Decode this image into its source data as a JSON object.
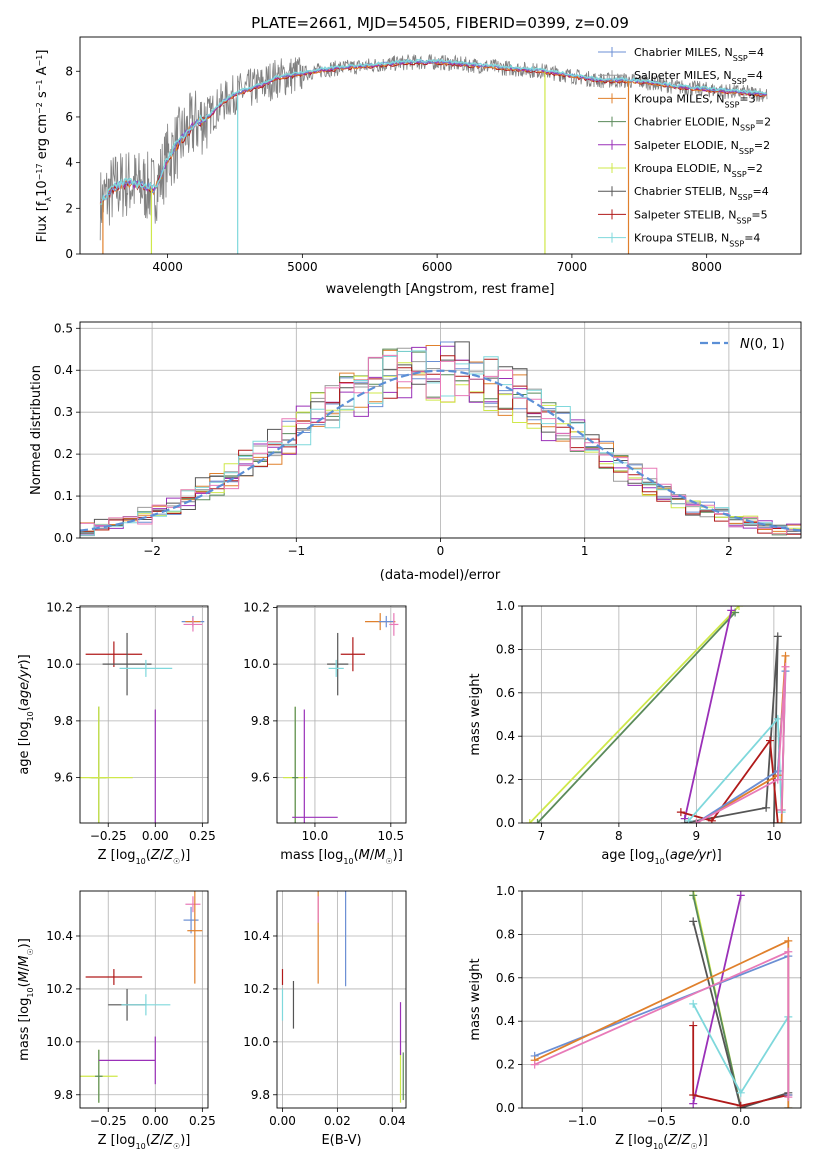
{
  "page_title": "PLATE=2661, MJD=54505, FIBERID=0399, z=0.09",
  "colors": {
    "Chabrier MILES": "#6b8fd4",
    "Salpeter MILES": "#9c9c9c",
    "Kroupa MILES": "#e0802c",
    "Chabrier ELODIE": "#5a8a5a",
    "Salpeter ELODIE": "#9a30b8",
    "Kroupa ELODIE": "#cfe84a",
    "Chabrier STELIB": "#555555",
    "Salpeter STELIB": "#b01a1a",
    "Kroupa STELIB": "#7fd8dc",
    "pink": "#e87ab8",
    "data": "#808080",
    "normal": "#5b8fd6"
  },
  "chart_data": [
    {
      "id": "spectrum",
      "type": "line",
      "title": "PLATE=2661, MJD=54505, FIBERID=0399, z=0.09",
      "xlabel": "wavelength [Angstrom, rest frame]",
      "ylabel": "Flux [f$_\\lambda$ 10$^{-17}$ erg cm$^{-2}$ s$^{-1}$ A$^{-1}$]",
      "xlim": [
        3350,
        8700
      ],
      "ylim": [
        0,
        9.5
      ],
      "xticks": [
        4000,
        5000,
        6000,
        7000,
        8000
      ],
      "yticks": [
        0,
        2,
        4,
        6,
        8
      ],
      "grid": false,
      "legend_position": "right",
      "legend": [
        {
          "label": "Chabrier MILES, N",
          "sub": "SSP",
          "tail": "=4",
          "color": "Chabrier MILES"
        },
        {
          "label": "Salpeter MILES, N",
          "sub": "SSP",
          "tail": "=4",
          "color": "Salpeter MILES"
        },
        {
          "label": "Kroupa MILES, N",
          "sub": "SSP",
          "tail": "=3",
          "color": "Kroupa MILES"
        },
        {
          "label": "Chabrier ELODIE, N",
          "sub": "SSP",
          "tail": "=2",
          "color": "Chabrier ELODIE"
        },
        {
          "label": "Salpeter ELODIE, N",
          "sub": "SSP",
          "tail": "=2",
          "color": "Salpeter ELODIE"
        },
        {
          "label": "Kroupa ELODIE, N",
          "sub": "SSP",
          "tail": "=2",
          "color": "Kroupa ELODIE"
        },
        {
          "label": "Chabrier STELIB, N",
          "sub": "SSP",
          "tail": "=4",
          "color": "Chabrier STELIB"
        },
        {
          "label": "Salpeter STELIB, N",
          "sub": "SSP",
          "tail": "=5",
          "color": "Salpeter STELIB"
        },
        {
          "label": "Kroupa STELIB, N",
          "sub": "SSP",
          "tail": "=4",
          "color": "Kroupa STELIB"
        }
      ],
      "model_continuum": [
        [
          3500,
          2.2
        ],
        [
          3600,
          2.9
        ],
        [
          3700,
          3.1
        ],
        [
          3800,
          3.0
        ],
        [
          3900,
          2.8
        ],
        [
          3950,
          3.4
        ],
        [
          4000,
          4.2
        ],
        [
          4100,
          5.0
        ],
        [
          4200,
          5.7
        ],
        [
          4300,
          6.0
        ],
        [
          4400,
          6.6
        ],
        [
          4500,
          7.0
        ],
        [
          4600,
          7.2
        ],
        [
          4700,
          7.4
        ],
        [
          4800,
          7.7
        ],
        [
          4900,
          7.8
        ],
        [
          5000,
          7.9
        ],
        [
          5200,
          8.1
        ],
        [
          5400,
          8.2
        ],
        [
          5600,
          8.3
        ],
        [
          5800,
          8.4
        ],
        [
          6000,
          8.4
        ],
        [
          6200,
          8.3
        ],
        [
          6400,
          8.2
        ],
        [
          6600,
          8.1
        ],
        [
          6800,
          8.0
        ],
        [
          7000,
          7.8
        ],
        [
          7200,
          7.6
        ],
        [
          7400,
          7.6
        ],
        [
          7600,
          7.5
        ],
        [
          7800,
          7.3
        ],
        [
          8000,
          7.2
        ],
        [
          8200,
          7.1
        ],
        [
          8400,
          7.0
        ]
      ],
      "dropouts": [
        {
          "x": 3520,
          "color": "Kroupa MILES"
        },
        {
          "x": 3880,
          "color": "Kroupa ELODIE"
        },
        {
          "x": 4520,
          "color": "Kroupa STELIB"
        },
        {
          "x": 6800,
          "color": "Kroupa ELODIE"
        },
        {
          "x": 7420,
          "color": "Kroupa MILES"
        }
      ]
    },
    {
      "id": "residuals",
      "type": "line",
      "xlabel": "(data-model)/error",
      "ylabel": "Normed distribution",
      "xlim": [
        -2.5,
        2.5
      ],
      "ylim": [
        0,
        0.515
      ],
      "xticks": [
        -2,
        -1,
        0,
        1,
        2
      ],
      "yticks": [
        0.0,
        0.1,
        0.2,
        0.3,
        0.4,
        0.5
      ],
      "grid": true,
      "legend_position": "top-right",
      "legend": [
        {
          "label": "N(0,1)",
          "color": "normal"
        }
      ],
      "bin_width": 0.1
    },
    {
      "id": "age-vs-Z",
      "type": "scatter",
      "xlabel": "Z [log10(Z/Z☉)]",
      "ylabel": "age  [log10(age/yr)]",
      "xlim": [
        -0.4,
        0.28
      ],
      "ylim": [
        9.44,
        10.205
      ],
      "xticks": [
        -0.25,
        0.0,
        0.25
      ],
      "yticks": [
        9.6,
        9.8,
        10.0,
        10.2
      ],
      "grid": true,
      "points": [
        {
          "x": 0.2,
          "y": 10.15,
          "ex": 0.06,
          "ey": 0.02,
          "color": "Chabrier MILES"
        },
        {
          "x": 0.2,
          "y": 10.15,
          "ex": 0.04,
          "ey": 0.015,
          "color": "Kroupa MILES"
        },
        {
          "x": 0.2,
          "y": 10.14,
          "ex": 0.05,
          "ey": 0.025,
          "color": "pink"
        },
        {
          "x": -0.22,
          "y": 10.035,
          "ex": 0.15,
          "ey": 0.045,
          "color": "Salpeter STELIB"
        },
        {
          "x": -0.15,
          "y": 10.0,
          "ex": 0.13,
          "ey": 0.11,
          "color": "Chabrier STELIB"
        },
        {
          "x": -0.05,
          "y": 9.985,
          "ex": 0.14,
          "ey": 0.03,
          "color": "Kroupa STELIB"
        },
        {
          "x": -0.3,
          "y": 9.6,
          "ex": 0.05,
          "ey": 0.25,
          "color": "Kroupa ELODIE"
        },
        {
          "x": -0.3,
          "y": 9.6,
          "ex": 0.04,
          "ey": 0.25,
          "color": "Chabrier ELODIE"
        },
        {
          "x": -0.3,
          "y": 9.6,
          "ex": 0.18,
          "ey": 0.25,
          "color": "Kroupa ELODIE"
        },
        {
          "x": -0.3,
          "y": 9.46,
          "ex": 0.0,
          "ey": 0.0,
          "color": "Salpeter ELODIE"
        },
        {
          "x": 0.0,
          "y": 9.46,
          "ex": 0.0,
          "ey": 0.38,
          "color": "Salpeter ELODIE"
        }
      ]
    },
    {
      "id": "age-vs-mass",
      "type": "scatter",
      "xlabel": "mass [log10(M/M☉)]",
      "xlim": [
        9.75,
        10.6
      ],
      "ylim": [
        9.44,
        10.205
      ],
      "xticks": [
        10.0,
        10.5
      ],
      "yticks": [
        9.6,
        9.8,
        10.0,
        10.2
      ],
      "grid": true,
      "points": [
        {
          "x": 10.43,
          "y": 10.15,
          "ex": 0.1,
          "ey": 0.03,
          "color": "Kroupa MILES"
        },
        {
          "x": 10.47,
          "y": 10.15,
          "ex": 0.05,
          "ey": 0.02,
          "color": "Chabrier MILES"
        },
        {
          "x": 10.52,
          "y": 10.14,
          "ex": 0.03,
          "ey": 0.04,
          "color": "pink"
        },
        {
          "x": 10.25,
          "y": 10.035,
          "ex": 0.08,
          "ey": 0.06,
          "color": "Salpeter STELIB"
        },
        {
          "x": 10.15,
          "y": 10.0,
          "ex": 0.07,
          "ey": 0.11,
          "color": "Chabrier STELIB"
        },
        {
          "x": 10.14,
          "y": 9.985,
          "ex": 0.05,
          "ey": 0.03,
          "color": "Kroupa STELIB"
        },
        {
          "x": 9.87,
          "y": 9.6,
          "ex": 0.08,
          "ey": 0.25,
          "color": "Kroupa ELODIE"
        },
        {
          "x": 9.87,
          "y": 9.6,
          "ex": 0.02,
          "ey": 0.25,
          "color": "Chabrier ELODIE"
        },
        {
          "x": 9.93,
          "y": 9.6,
          "ex": 0.0,
          "ey": 0.24,
          "color": "Salpeter ELODIE"
        },
        {
          "x": 10.0,
          "y": 9.46,
          "ex": 0.15,
          "ey": 0.0,
          "color": "Salpeter ELODIE"
        }
      ]
    },
    {
      "id": "weight-vs-age",
      "type": "line",
      "xlabel": "age  [log10(age/yr)]",
      "ylabel": "mass weight",
      "xlim": [
        6.75,
        10.35
      ],
      "ylim": [
        0,
        1.0
      ],
      "xticks": [
        7,
        8,
        9,
        10
      ],
      "yticks": [
        0.0,
        0.2,
        0.4,
        0.6,
        0.8,
        1.0
      ],
      "grid": true,
      "series": [
        {
          "color": "Kroupa ELODIE",
          "pts": [
            [
              6.85,
              0.0
            ],
            [
              9.55,
              1.0
            ]
          ]
        },
        {
          "color": "Chabrier ELODIE",
          "pts": [
            [
              6.95,
              0.0
            ],
            [
              9.5,
              0.97
            ]
          ]
        },
        {
          "color": "Salpeter ELODIE",
          "pts": [
            [
              8.85,
              0.02
            ],
            [
              9.45,
              0.98
            ]
          ]
        },
        {
          "color": "Chabrier STELIB",
          "pts": [
            [
              8.85,
              0.0
            ],
            [
              9.9,
              0.07
            ],
            [
              10.05,
              0.86
            ],
            [
              10.0,
              0.0
            ]
          ]
        },
        {
          "color": "Salpeter STELIB",
          "pts": [
            [
              8.8,
              0.05
            ],
            [
              9.2,
              0.01
            ],
            [
              9.95,
              0.38
            ],
            [
              10.05,
              0.0
            ]
          ]
        },
        {
          "color": "Kroupa STELIB",
          "pts": [
            [
              8.9,
              0.01
            ],
            [
              10.05,
              0.48
            ],
            [
              10.1,
              0.05
            ]
          ]
        },
        {
          "color": "Kroupa MILES",
          "pts": [
            [
              9.0,
              0.0
            ],
            [
              10.05,
              0.22
            ],
            [
              10.15,
              0.77
            ],
            [
              10.1,
              0.0
            ]
          ]
        },
        {
          "color": "Chabrier MILES",
          "pts": [
            [
              9.0,
              0.0
            ],
            [
              10.05,
              0.24
            ],
            [
              10.15,
              0.7
            ],
            [
              10.1,
              0.06
            ]
          ]
        },
        {
          "color": "pink",
          "pts": [
            [
              9.0,
              0.0
            ],
            [
              10.05,
              0.2
            ],
            [
              10.15,
              0.72
            ],
            [
              10.1,
              0.06
            ]
          ]
        }
      ]
    },
    {
      "id": "mass-vs-Z",
      "type": "scatter",
      "xlabel": "Z [log10(Z/Z☉)]",
      "ylabel": "mass [log10(M/M☉)]",
      "xlim": [
        -0.4,
        0.28
      ],
      "ylim": [
        9.75,
        10.57
      ],
      "xticks": [
        -0.25,
        0.0,
        0.25
      ],
      "yticks": [
        9.8,
        10.0,
        10.2,
        10.4
      ],
      "grid": true,
      "points": [
        {
          "x": 0.2,
          "y": 10.52,
          "ex": 0.04,
          "ey": 0.03,
          "color": "pink"
        },
        {
          "x": 0.19,
          "y": 10.46,
          "ex": 0.04,
          "ey": 0.05,
          "color": "Chabrier MILES"
        },
        {
          "x": 0.21,
          "y": 10.42,
          "ex": 0.04,
          "ey": 0.2,
          "color": "Kroupa MILES"
        },
        {
          "x": -0.22,
          "y": 10.245,
          "ex": 0.15,
          "ey": 0.03,
          "color": "Salpeter STELIB"
        },
        {
          "x": -0.15,
          "y": 10.14,
          "ex": 0.1,
          "ey": 0.06,
          "color": "Chabrier STELIB"
        },
        {
          "x": -0.05,
          "y": 10.14,
          "ex": 0.13,
          "ey": 0.04,
          "color": "Kroupa STELIB"
        },
        {
          "x": -0.3,
          "y": 9.87,
          "ex": 0.1,
          "ey": 0.1,
          "color": "Kroupa ELODIE"
        },
        {
          "x": -0.3,
          "y": 9.87,
          "ex": 0.02,
          "ey": 0.1,
          "color": "Chabrier ELODIE"
        },
        {
          "x": -0.15,
          "y": 9.93,
          "ex": 0.15,
          "ey": 0.0,
          "color": "Salpeter ELODIE"
        },
        {
          "x": 0.0,
          "y": 9.93,
          "ex": 0.0,
          "ey": 0.09,
          "color": "Salpeter ELODIE"
        }
      ]
    },
    {
      "id": "mass-vs-ebv",
      "type": "scatter",
      "xlabel": "E(B-V)",
      "xlim": [
        -0.002,
        0.045
      ],
      "ylim": [
        9.75,
        10.57
      ],
      "xticks": [
        0.0,
        0.02,
        0.04
      ],
      "yticks": [
        9.8,
        10.0,
        10.2,
        10.4
      ],
      "grid": true,
      "points": [
        {
          "x": 0.013,
          "y": 10.42,
          "ex": 0,
          "ey": 0.2,
          "color": "Kroupa MILES"
        },
        {
          "x": 0.013,
          "y": 10.5,
          "ex": 0,
          "ey": 0.05,
          "color": "pink"
        },
        {
          "x": 0.023,
          "y": 10.46,
          "ex": 0,
          "ey": 0.25,
          "color": "Chabrier MILES"
        },
        {
          "x": 0.0,
          "y": 10.245,
          "ex": 0,
          "ey": 0.03,
          "color": "Salpeter STELIB"
        },
        {
          "x": 0.004,
          "y": 10.14,
          "ex": 0,
          "ey": 0.09,
          "color": "Chabrier STELIB"
        },
        {
          "x": 0.0,
          "y": 10.14,
          "ex": 0,
          "ey": 0.06,
          "color": "Kroupa STELIB"
        },
        {
          "x": 0.043,
          "y": 9.87,
          "ex": 0,
          "ey": 0.1,
          "color": "Kroupa ELODIE"
        },
        {
          "x": 0.043,
          "y": 10.05,
          "ex": 0,
          "ey": 0.1,
          "color": "Salpeter ELODIE"
        },
        {
          "x": 0.044,
          "y": 9.87,
          "ex": 0,
          "ey": 0.09,
          "color": "Chabrier ELODIE"
        }
      ]
    },
    {
      "id": "weight-vs-Z",
      "type": "line",
      "xlabel": "Z [log10(Z/Z☉)]",
      "ylabel": "mass weight",
      "xlim": [
        -1.38,
        0.38
      ],
      "ylim": [
        0,
        1.0
      ],
      "xticks": [
        -1.0,
        -0.5,
        0.0
      ],
      "yticks": [
        0.0,
        0.2,
        0.4,
        0.6,
        0.8,
        1.0
      ],
      "grid": true,
      "series": [
        {
          "color": "Kroupa ELODIE",
          "pts": [
            [
              -0.3,
              1.0
            ],
            [
              0.0,
              0.0
            ]
          ]
        },
        {
          "color": "Chabrier ELODIE",
          "pts": [
            [
              -0.3,
              0.98
            ],
            [
              0.0,
              0.0
            ]
          ]
        },
        {
          "color": "Salpeter ELODIE",
          "pts": [
            [
              -0.3,
              0.02
            ],
            [
              0.0,
              0.98
            ]
          ]
        },
        {
          "color": "Chabrier STELIB",
          "pts": [
            [
              -0.3,
              0.86
            ],
            [
              0.0,
              0.0
            ],
            [
              0.3,
              0.07
            ]
          ]
        },
        {
          "color": "Salpeter STELIB",
          "pts": [
            [
              -0.3,
              0.38
            ],
            [
              -0.3,
              0.06
            ],
            [
              0.0,
              0.01
            ],
            [
              0.3,
              0.06
            ]
          ]
        },
        {
          "color": "Kroupa STELIB",
          "pts": [
            [
              -0.3,
              0.48
            ],
            [
              0.0,
              0.07
            ],
            [
              0.3,
              0.42
            ],
            [
              0.3,
              0.0
            ]
          ]
        },
        {
          "color": "Chabrier MILES",
          "pts": [
            [
              -1.3,
              0.24
            ],
            [
              0.3,
              0.7
            ],
            [
              0.3,
              0.06
            ]
          ]
        },
        {
          "color": "Kroupa MILES",
          "pts": [
            [
              -1.3,
              0.22
            ],
            [
              0.3,
              0.77
            ],
            [
              0.3,
              0.0
            ]
          ]
        },
        {
          "color": "pink",
          "pts": [
            [
              -1.3,
              0.2
            ],
            [
              0.3,
              0.72
            ],
            [
              0.3,
              0.05
            ]
          ]
        }
      ]
    }
  ]
}
